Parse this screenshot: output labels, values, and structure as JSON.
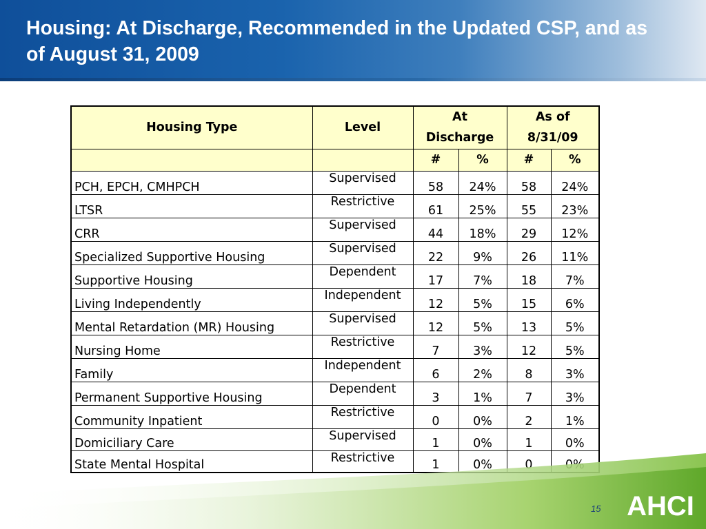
{
  "slide": {
    "title": "Housing:  At Discharge, Recommended in the Updated CSP, and as of August 31, 2009",
    "page_number": "15",
    "logo_text": "AHCI"
  },
  "table": {
    "headers": {
      "housing_type": "Housing Type",
      "level": "Level",
      "at_discharge_line1": "At",
      "at_discharge_line2": "Discharge",
      "as_of_line1": "As of",
      "as_of_line2": "8/31/09",
      "count": "#",
      "percent": "%"
    },
    "rows": [
      {
        "type": "PCH, EPCH, CMHPCH",
        "level": "Supervised",
        "dis_n": "58",
        "dis_p": "24%",
        "asof_n": "58",
        "asof_p": "24%"
      },
      {
        "type": "LTSR",
        "level": "Restrictive",
        "dis_n": "61",
        "dis_p": "25%",
        "asof_n": "55",
        "asof_p": "23%"
      },
      {
        "type": "CRR",
        "level": "Supervised",
        "dis_n": "44",
        "dis_p": "18%",
        "asof_n": "29",
        "asof_p": "12%"
      },
      {
        "type": "Specialized Supportive Housing",
        "level": "Supervised",
        "dis_n": "22",
        "dis_p": "9%",
        "asof_n": "26",
        "asof_p": "11%"
      },
      {
        "type": "Supportive Housing",
        "level": "Dependent",
        "dis_n": "17",
        "dis_p": "7%",
        "asof_n": "18",
        "asof_p": "7%"
      },
      {
        "type": "Living Independently",
        "level": "Independent",
        "dis_n": "12",
        "dis_p": "5%",
        "asof_n": "15",
        "asof_p": "6%"
      },
      {
        "type": "Mental Retardation (MR) Housing",
        "level": "Supervised",
        "dis_n": "12",
        "dis_p": "5%",
        "asof_n": "13",
        "asof_p": "5%"
      },
      {
        "type": "Nursing Home",
        "level": "Restrictive",
        "dis_n": "7",
        "dis_p": "3%",
        "asof_n": "12",
        "asof_p": "5%"
      },
      {
        "type": "Family",
        "level": "Independent",
        "dis_n": "6",
        "dis_p": "2%",
        "asof_n": "8",
        "asof_p": "3%"
      },
      {
        "type": "Permanent Supportive Housing",
        "level": "Dependent",
        "dis_n": "3",
        "dis_p": "1%",
        "asof_n": "7",
        "asof_p": "3%"
      },
      {
        "type": "Community Inpatient",
        "level": "Restrictive",
        "dis_n": "0",
        "dis_p": "0%",
        "asof_n": "2",
        "asof_p": "1%"
      },
      {
        "type": "Domiciliary Care",
        "level": "Supervised",
        "dis_n": "1",
        "dis_p": "0%",
        "asof_n": "1",
        "asof_p": "0%"
      },
      {
        "type": "State Mental Hospital",
        "level": "Restrictive",
        "dis_n": "1",
        "dis_p": "0%",
        "asof_n": "0",
        "asof_p": "0%"
      }
    ]
  },
  "colors": {
    "title_blue": "#1a63ad",
    "header_fill": "#ffffcc",
    "footer_green": "#7dbb3c"
  }
}
